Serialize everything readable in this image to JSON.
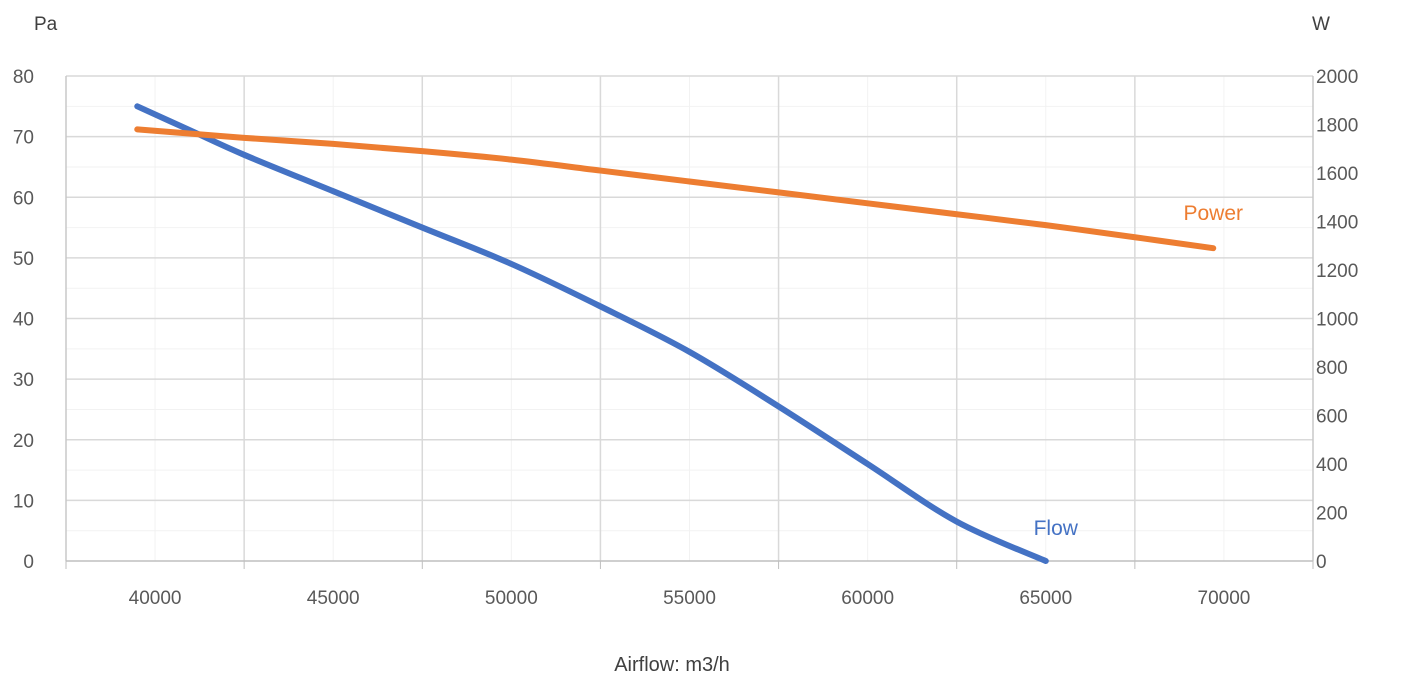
{
  "chart_data": {
    "type": "line",
    "xlabel": "Airflow: m3/h",
    "y_left_unit": "Pa",
    "y_right_unit": "W",
    "xlim": [
      37500,
      72500
    ],
    "x_ticks": [
      40000,
      45000,
      50000,
      55000,
      60000,
      65000,
      70000
    ],
    "ylim_left": [
      0,
      80
    ],
    "y_left_ticks": [
      0,
      10,
      20,
      30,
      40,
      50,
      60,
      70,
      80
    ],
    "ylim_right": [
      0,
      2000
    ],
    "y_right_ticks": [
      0,
      200,
      400,
      600,
      800,
      1000,
      1200,
      1400,
      1600,
      1800,
      2000
    ],
    "grid": true,
    "series": [
      {
        "name": "Flow",
        "axis": "left",
        "color": "#4472C4",
        "points": [
          [
            39500,
            75
          ],
          [
            41000,
            71
          ],
          [
            42500,
            67
          ],
          [
            45000,
            61
          ],
          [
            47500,
            55
          ],
          [
            50000,
            49
          ],
          [
            52500,
            42
          ],
          [
            55000,
            34.5
          ],
          [
            57500,
            25.5
          ],
          [
            60000,
            16
          ],
          [
            62500,
            6.5
          ],
          [
            65000,
            0
          ]
        ]
      },
      {
        "name": "Power",
        "axis": "right",
        "color": "#ED7D31",
        "points": [
          [
            39500,
            1780
          ],
          [
            42500,
            1745
          ],
          [
            45000,
            1720
          ],
          [
            47500,
            1690
          ],
          [
            50000,
            1655
          ],
          [
            52500,
            1610
          ],
          [
            55000,
            1565
          ],
          [
            57500,
            1520
          ],
          [
            60000,
            1475
          ],
          [
            62500,
            1430
          ],
          [
            65000,
            1385
          ],
          [
            67500,
            1335
          ],
          [
            69700,
            1290
          ]
        ]
      }
    ]
  }
}
